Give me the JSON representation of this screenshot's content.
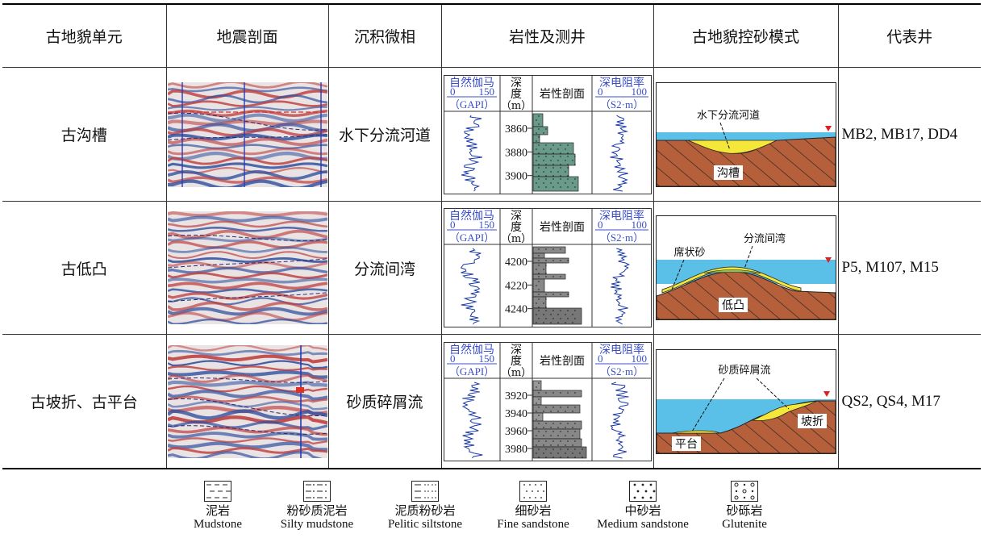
{
  "header": {
    "unit": "古地貌单元",
    "seismic": "地震剖面",
    "facies": "沉积微相",
    "lithology": "岩性及测井",
    "pattern": "古地貌控砂模式",
    "wells": "代表井"
  },
  "log_labels": {
    "gr_title": "自然伽马",
    "gr_scale_min": "0",
    "gr_scale_max": "150",
    "gr_unit": "（GAPI）",
    "depth_title": "深度",
    "depth_unit": "（m）",
    "litho_title": "岩性剖面",
    "res_title": "深电阻率",
    "res_scale_min": "0",
    "res_scale_max": "100",
    "res_unit": "（S2·m）"
  },
  "rows": [
    {
      "unit": "古沟槽",
      "facies": "水下分流河道",
      "depths": [
        "3860",
        "3880",
        "3900"
      ],
      "wells": "MB2, MB17, DD4",
      "model_labels": {
        "top": "水下分流河道",
        "bottom": "沟槽"
      }
    },
    {
      "unit": "古低凸",
      "facies": "分流间湾",
      "depths": [
        "4200",
        "4220",
        "4240"
      ],
      "wells": "P5, M107, M15",
      "model_labels": {
        "left": "席状砂",
        "top": "分流间湾",
        "bottom": "低凸"
      }
    },
    {
      "unit": "古坡折、古平台",
      "facies": "砂质碎屑流",
      "depths": [
        "3920",
        "3940",
        "3960",
        "3980"
      ],
      "wells": "QS2, QS4, M17",
      "model_labels": {
        "top": "砂质碎屑流",
        "right": "坡折",
        "left": "平台"
      }
    }
  ],
  "legend": [
    {
      "cn": "泥岩",
      "en": "Mudstone",
      "pattern": "dashes"
    },
    {
      "cn": "粉砂质泥岩",
      "en": "Silty mudstone",
      "pattern": "dash-dots"
    },
    {
      "cn": "泥质粉砂岩",
      "en": "Pelitic siltstone",
      "pattern": "dots-dash"
    },
    {
      "cn": "细砂岩",
      "en": "Fine sandstone",
      "pattern": "fine-dots"
    },
    {
      "cn": "中砂岩",
      "en": "Medium sandstone",
      "pattern": "medium-dots"
    },
    {
      "cn": "砂砾岩",
      "en": "Glutenite",
      "pattern": "circles-dots"
    }
  ],
  "colors": {
    "water": "#5bc0e8",
    "sand": "#f5e63a",
    "bedrock": "#b5603a",
    "sea_marker": "#e02020",
    "log_curve": "#1a3aa8",
    "litho_fill": "#6a9a8a",
    "seismic_red": "#c04040",
    "seismic_blue": "#3050a0"
  }
}
